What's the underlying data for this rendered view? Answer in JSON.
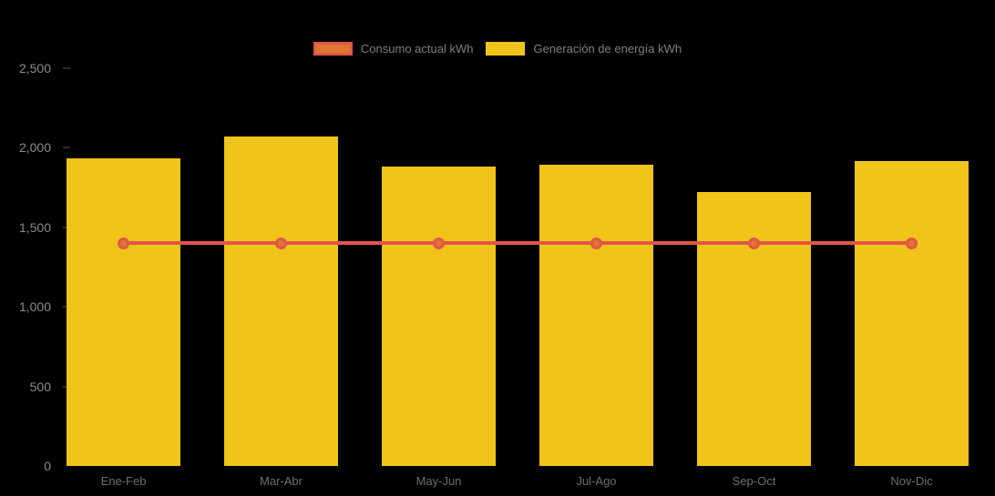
{
  "background_color": "#000000",
  "legend": {
    "items": [
      {
        "label": "Consumo actual kWh",
        "swatch_fill": "#e0762f",
        "swatch_border": "#e2564a"
      },
      {
        "label": "Generación de energía kWh",
        "swatch_fill": "#f0c419",
        "swatch_border": "#f0c419"
      }
    ],
    "text_color": "#7f7f7f",
    "position": "top-center"
  },
  "chart_data": {
    "type": "bar",
    "title": "",
    "xlabel": "",
    "ylabel": "",
    "categories": [
      "Ene-Feb",
      "Mar-Abr",
      "May-Jun",
      "Jul-Ago",
      "Sep-Oct",
      "Nov-Dic"
    ],
    "series": [
      {
        "name": "Generación de energía kWh",
        "type": "bar",
        "color": "#f0c419",
        "values": [
          1935,
          2070,
          1880,
          1895,
          1720,
          1915
        ]
      },
      {
        "name": "Consumo actual kWh",
        "type": "line",
        "color": "#e2564a",
        "marker_fill": "#e0762f",
        "values": [
          1400,
          1400,
          1400,
          1400,
          1400,
          1400
        ]
      }
    ],
    "ylim": [
      0,
      2500
    ],
    "y_ticks": [
      {
        "label": "0",
        "value": 0
      },
      {
        "label": "500",
        "value": 500
      },
      {
        "label": "1,000",
        "value": 1000
      },
      {
        "label": "1,500",
        "value": 1500
      },
      {
        "label": "2,000",
        "value": 2000
      },
      {
        "label": "2,500",
        "value": 2500
      }
    ],
    "grid": false,
    "axis_text_color": "#8a8a8a",
    "x_axis_text_color": "#6e6e6e"
  }
}
